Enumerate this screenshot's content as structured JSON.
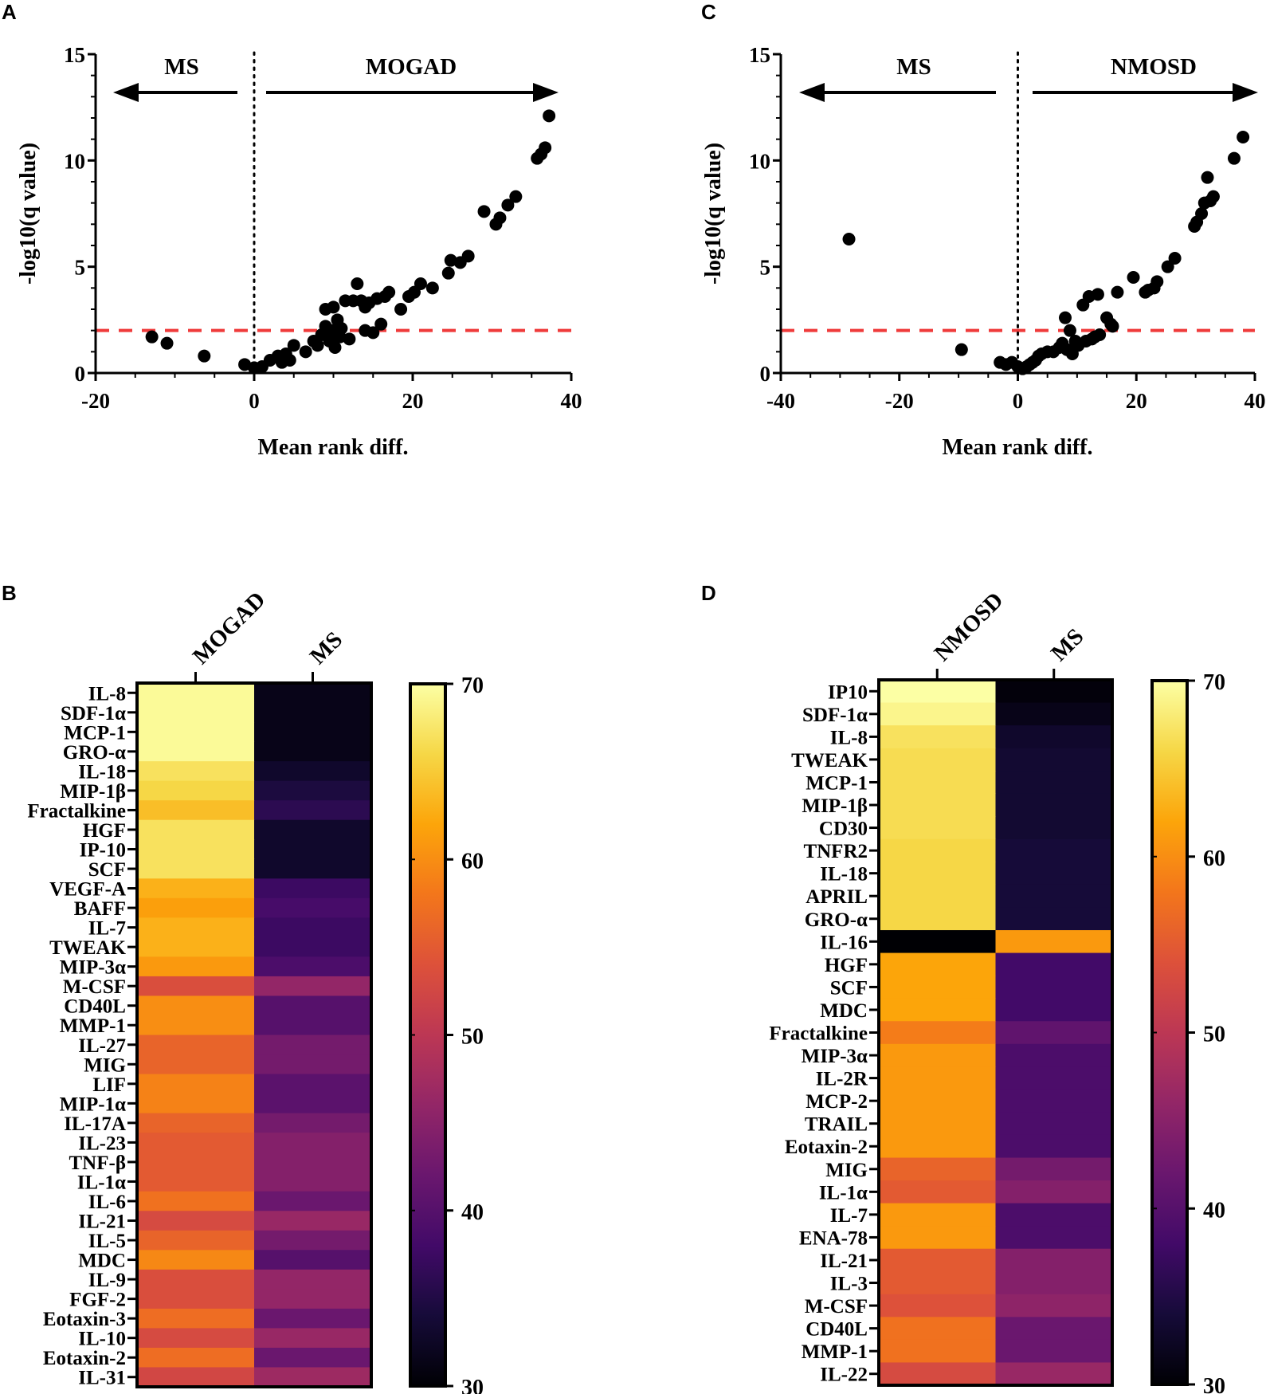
{
  "colors": {
    "marker": "#000000",
    "threshold": "#ef3b3b",
    "axis": "#000000"
  },
  "chart_data": [
    {
      "panel": "A",
      "type": "scatter",
      "xlabel": "Mean rank diff.",
      "ylabel": "-log10(q value)",
      "xlim": [
        -20,
        40
      ],
      "ylim": [
        0,
        15
      ],
      "xticks": [
        "-20",
        "0",
        "20",
        "40"
      ],
      "yticks": [
        "0",
        "5",
        "10",
        "15"
      ],
      "left_label": "MS",
      "right_label": "MOGAD",
      "threshold_y": 2,
      "points": [
        [
          -12.9,
          1.7
        ],
        [
          -11,
          1.4
        ],
        [
          -6.3,
          0.8
        ],
        [
          -1.2,
          0.4
        ],
        [
          0,
          0.25
        ],
        [
          1,
          0.3
        ],
        [
          2,
          0.6
        ],
        [
          3,
          0.8
        ],
        [
          3.5,
          0.5
        ],
        [
          4,
          0.9
        ],
        [
          4.5,
          0.6
        ],
        [
          5,
          1.3
        ],
        [
          6.5,
          1.0
        ],
        [
          7.5,
          1.5
        ],
        [
          8,
          1.3
        ],
        [
          8.5,
          1.8
        ],
        [
          9,
          2.2
        ],
        [
          9,
          3.0
        ],
        [
          9.5,
          1.5
        ],
        [
          9.8,
          2.0
        ],
        [
          10,
          3.1
        ],
        [
          10.2,
          1.2
        ],
        [
          10.5,
          2.5
        ],
        [
          10.8,
          1.7
        ],
        [
          11,
          2.1
        ],
        [
          11.5,
          3.4
        ],
        [
          12,
          1.6
        ],
        [
          12.5,
          3.4
        ],
        [
          13,
          4.2
        ],
        [
          13.5,
          3.4
        ],
        [
          14,
          3.1
        ],
        [
          14,
          2.0
        ],
        [
          14.5,
          3.3
        ],
        [
          15,
          1.9
        ],
        [
          15.5,
          3.5
        ],
        [
          16,
          2.3
        ],
        [
          16.5,
          3.6
        ],
        [
          17,
          3.8
        ],
        [
          18.5,
          3.0
        ],
        [
          19.5,
          3.6
        ],
        [
          20.2,
          3.8
        ],
        [
          21,
          4.2
        ],
        [
          22.5,
          4.0
        ],
        [
          24.5,
          4.7
        ],
        [
          24.8,
          5.3
        ],
        [
          26,
          5.2
        ],
        [
          27,
          5.5
        ],
        [
          29,
          7.6
        ],
        [
          30.5,
          7.0
        ],
        [
          31,
          7.3
        ],
        [
          32,
          7.9
        ],
        [
          33,
          8.3
        ],
        [
          35.7,
          10.1
        ],
        [
          36.2,
          10.3
        ],
        [
          36.7,
          10.6
        ],
        [
          37.2,
          12.1
        ]
      ]
    },
    {
      "panel": "C",
      "type": "scatter",
      "xlabel": "Mean rank diff.",
      "ylabel": "-log10(q value)",
      "xlim": [
        -40,
        40
      ],
      "ylim": [
        0,
        15
      ],
      "xticks": [
        "-40",
        "-20",
        "0",
        "20",
        "40"
      ],
      "yticks": [
        "0",
        "5",
        "10",
        "15"
      ],
      "left_label": "MS",
      "right_label": "NMOSD",
      "threshold_y": 2,
      "points": [
        [
          -28.5,
          6.3
        ],
        [
          -9.5,
          1.1
        ],
        [
          -3,
          0.5
        ],
        [
          -2,
          0.4
        ],
        [
          -1,
          0.5
        ],
        [
          0,
          0.3
        ],
        [
          0.8,
          0.2
        ],
        [
          1.5,
          0.3
        ],
        [
          2,
          0.4
        ],
        [
          2.5,
          0.5
        ],
        [
          3,
          0.6
        ],
        [
          3.5,
          0.8
        ],
        [
          4,
          0.9
        ],
        [
          5,
          1.0
        ],
        [
          6,
          1.0
        ],
        [
          7,
          1.2
        ],
        [
          7.5,
          1.4
        ],
        [
          8,
          2.6
        ],
        [
          8.3,
          1.1
        ],
        [
          8.8,
          2.0
        ],
        [
          9.2,
          0.9
        ],
        [
          9.7,
          1.5
        ],
        [
          10.2,
          1.3
        ],
        [
          11,
          3.2
        ],
        [
          11.5,
          1.5
        ],
        [
          12,
          3.6
        ],
        [
          12.5,
          1.6
        ],
        [
          13,
          1.7
        ],
        [
          13.5,
          3.7
        ],
        [
          13.8,
          1.8
        ],
        [
          15,
          2.6
        ],
        [
          15.7,
          2.3
        ],
        [
          16,
          2.2
        ],
        [
          16.8,
          3.8
        ],
        [
          19.5,
          4.5
        ],
        [
          21.5,
          3.8
        ],
        [
          22,
          3.9
        ],
        [
          23,
          4.0
        ],
        [
          23.5,
          4.3
        ],
        [
          25.3,
          5.0
        ],
        [
          26.5,
          5.4
        ],
        [
          29.8,
          6.9
        ],
        [
          30.2,
          7.1
        ],
        [
          31,
          7.5
        ],
        [
          31.5,
          8.0
        ],
        [
          32,
          9.2
        ],
        [
          32.5,
          8.1
        ],
        [
          33,
          8.3
        ],
        [
          36.5,
          10.1
        ],
        [
          38,
          11.1
        ]
      ]
    },
    {
      "panel": "B",
      "type": "heatmap",
      "columns": [
        "MOGAD",
        "MS"
      ],
      "colorbar": {
        "min": 30,
        "max": 70,
        "ticks": [
          "30",
          "40",
          "50",
          "60",
          "70"
        ]
      },
      "rows": [
        "IL-8",
        "SDF-1α",
        "MCP-1",
        "GRO-α",
        "IL-18",
        "MIP-1β",
        "Fractalkine",
        "HGF",
        "IP-10",
        "SCF",
        "VEGF-A",
        "BAFF",
        "IL-7",
        "TWEAK",
        "MIP-3α",
        "M-CSF",
        "CD40L",
        "MMP-1",
        "IL-27",
        "MIG",
        "LIF",
        "MIP-1α",
        "IL-17A",
        "IL-23",
        "TNF-β",
        "IL-1α",
        "IL-6",
        "IL-21",
        "IL-5",
        "MDC",
        "IL-9",
        "FGF-2",
        "Eotaxin-3",
        "IL-10",
        "Eotaxin-2",
        "IL-31"
      ],
      "values": [
        [
          69.5,
          31.5
        ],
        [
          69.5,
          31.5
        ],
        [
          69.5,
          31.5
        ],
        [
          69.5,
          31.5
        ],
        [
          67,
          33
        ],
        [
          66,
          34.5
        ],
        [
          64,
          36
        ],
        [
          67,
          33
        ],
        [
          67,
          33
        ],
        [
          67,
          33
        ],
        [
          63,
          37.5
        ],
        [
          61.5,
          38.5
        ],
        [
          63,
          37.5
        ],
        [
          63,
          37.5
        ],
        [
          61,
          39
        ],
        [
          53.5,
          46
        ],
        [
          60,
          40
        ],
        [
          60,
          40
        ],
        [
          56,
          43
        ],
        [
          56,
          43
        ],
        [
          59,
          40.5
        ],
        [
          59,
          40.5
        ],
        [
          56,
          43
        ],
        [
          55,
          44.5
        ],
        [
          55,
          44.5
        ],
        [
          55,
          44.5
        ],
        [
          57.5,
          42
        ],
        [
          53,
          46.5
        ],
        [
          56,
          43
        ],
        [
          59.5,
          40
        ],
        [
          53.5,
          46
        ],
        [
          53.5,
          46
        ],
        [
          57,
          42
        ],
        [
          53,
          46.5
        ],
        [
          57,
          42
        ],
        [
          52.5,
          47
        ]
      ]
    },
    {
      "panel": "D",
      "type": "heatmap",
      "columns": [
        "NMOSD",
        "MS"
      ],
      "colorbar": {
        "min": 30,
        "max": 70,
        "ticks": [
          "30",
          "40",
          "50",
          "60",
          "70"
        ]
      },
      "rows": [
        "IP10",
        "SDF-1α",
        "IL-8",
        "TWEAK",
        "MCP-1",
        "MIP-1β",
        "CD30",
        "TNFR2",
        "IL-18",
        "APRIL",
        "GRO-α",
        "IL-16",
        "HGF",
        "SCF",
        "MDC",
        "Fractalkine",
        "MIP-3α",
        "IL-2R",
        "MCP-2",
        "TRAIL",
        "Eotaxin-2",
        "MIG",
        "IL-1α",
        "IL-7",
        "ENA-78",
        "IL-21",
        "IL-3",
        "M-CSF",
        "CD40L",
        "MMP-1",
        "IL-22"
      ],
      "values": [
        [
          70,
          30.5
        ],
        [
          69,
          31.5
        ],
        [
          67,
          33
        ],
        [
          66.5,
          33.5
        ],
        [
          66.5,
          33.5
        ],
        [
          66.5,
          33.5
        ],
        [
          66.5,
          33.5
        ],
        [
          66,
          34
        ],
        [
          66,
          34
        ],
        [
          66,
          34
        ],
        [
          66,
          34
        ],
        [
          30,
          61
        ],
        [
          62,
          38
        ],
        [
          62,
          38
        ],
        [
          62,
          38
        ],
        [
          58.5,
          41
        ],
        [
          61,
          39
        ],
        [
          61,
          39
        ],
        [
          61,
          39
        ],
        [
          61,
          39
        ],
        [
          61,
          39
        ],
        [
          56,
          43
        ],
        [
          55,
          44.5
        ],
        [
          61,
          39
        ],
        [
          61,
          39
        ],
        [
          55,
          44.5
        ],
        [
          55,
          44.5
        ],
        [
          54,
          45.5
        ],
        [
          57.5,
          42
        ],
        [
          57.5,
          42
        ],
        [
          53,
          46.5
        ]
      ]
    }
  ]
}
